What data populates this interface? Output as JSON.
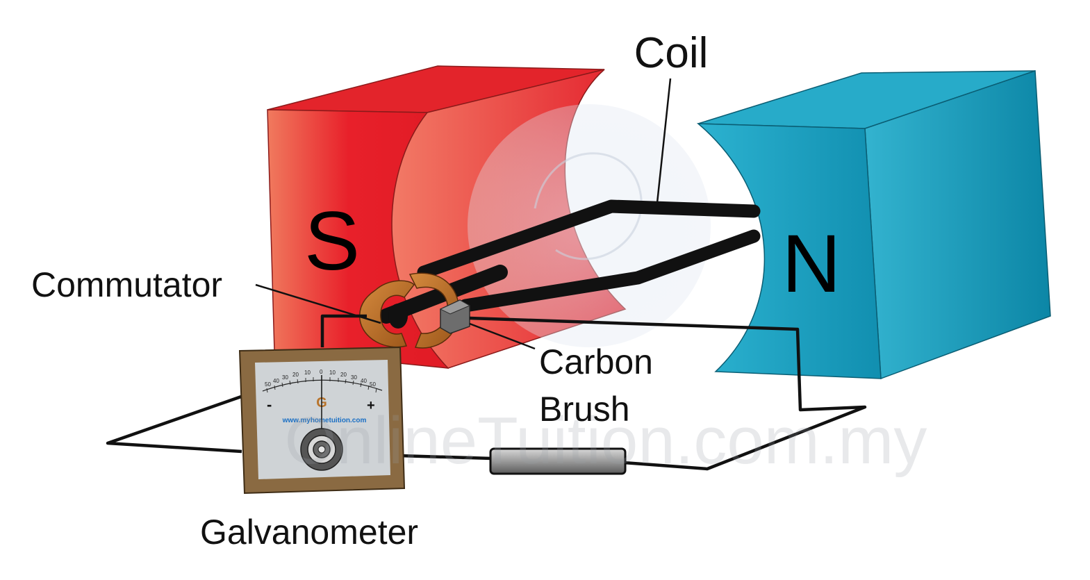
{
  "labels": {
    "coil": "Coil",
    "commutator": "Commutator",
    "carbon_brush_line1": "Carbon",
    "carbon_brush_line2": "Brush",
    "galvanometer": "Galvanometer",
    "south_pole": "S",
    "north_pole": "N"
  },
  "galvanometer_face": {
    "letter": "G",
    "minus": "-",
    "plus": "+",
    "url": "www.myhometuition.com",
    "scale_left": [
      "50",
      "40",
      "30",
      "20",
      "10"
    ],
    "scale_center": "0",
    "scale_right": [
      "10",
      "20",
      "30",
      "40",
      "50"
    ]
  },
  "watermark": "OnlineTuition.com.my",
  "colors": {
    "south_magnet": "#e8202a",
    "north_magnet": "#1aa1c0",
    "commutator": "#b86a26",
    "galvanometer_frame": "#8a6a42",
    "wire": "#111111"
  },
  "icons": {
    "dial": "galvanometer-dial-icon",
    "resistor": "resistor-icon"
  }
}
